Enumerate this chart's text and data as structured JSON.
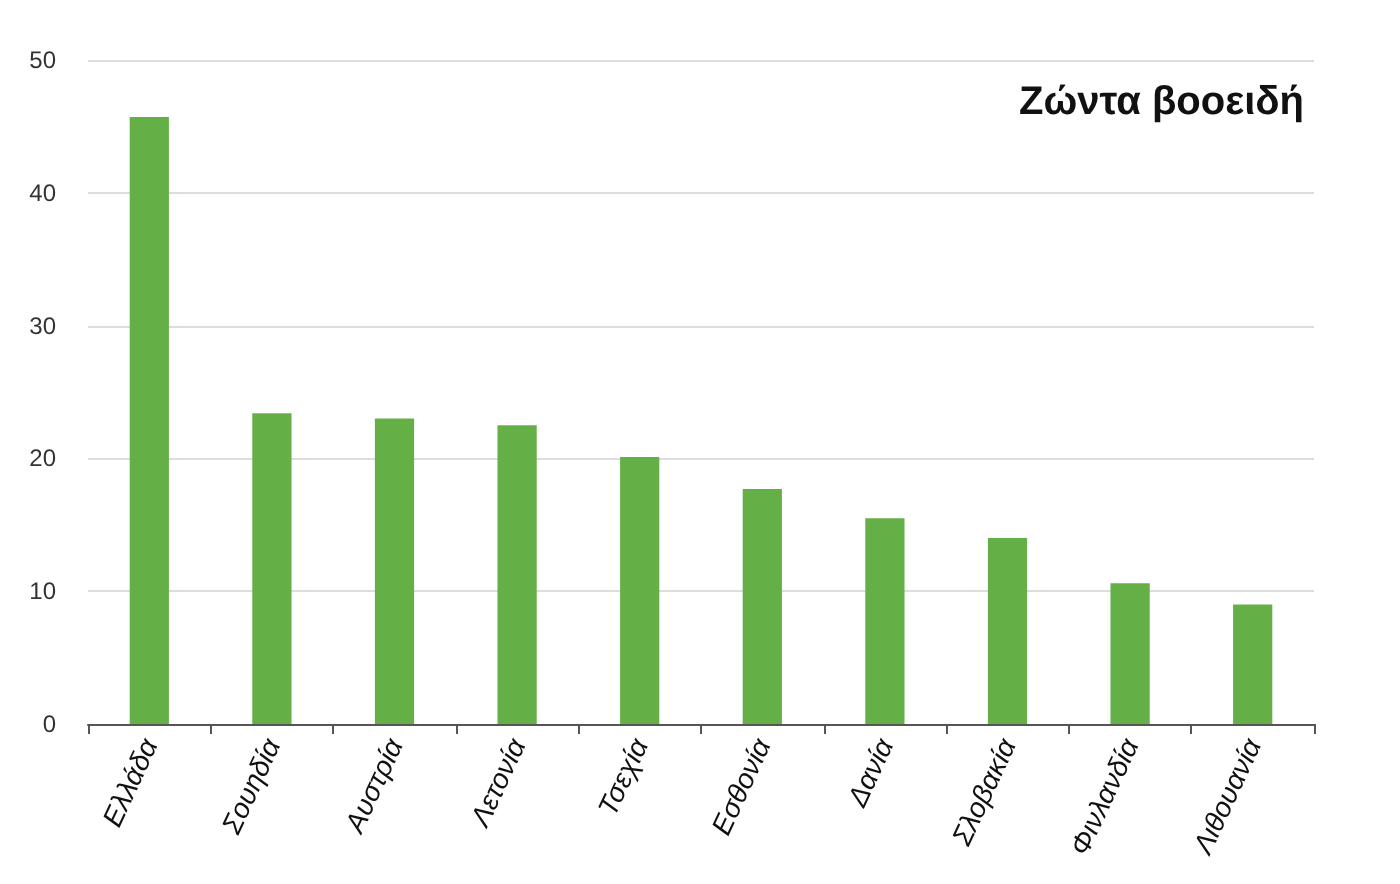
{
  "chart_data": {
    "type": "bar",
    "title": "Ζώντα βοοειδή",
    "categories": [
      "Ελλάδα",
      "Σουηδία",
      "Αυστρία",
      "Λετονία",
      "Τσεχία",
      "Εσθονία",
      "Δανία",
      "Σλοβακία",
      "Φινλανδία",
      "Λιθουανία"
    ],
    "values": [
      45.7,
      23.4,
      23.0,
      22.5,
      20.1,
      17.7,
      15.5,
      14.0,
      10.6,
      9.0
    ],
    "color": "#64b046",
    "ylim": [
      0,
      50
    ],
    "yticks": [
      0,
      10,
      20,
      30,
      40,
      50
    ],
    "grid": "y"
  }
}
